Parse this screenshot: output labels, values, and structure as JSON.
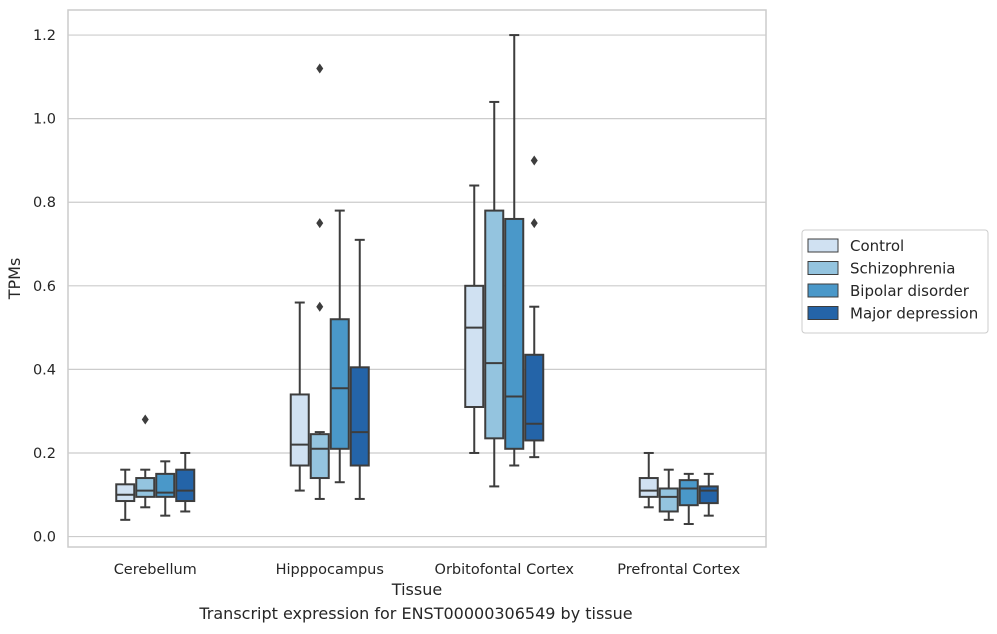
{
  "caption": "Transcript expression for ENST00000306549 by tissue",
  "chart_data": {
    "type": "boxplot",
    "xlabel": "Tissue",
    "ylabel": "TPMs",
    "ylim": [
      -0.025,
      1.26
    ],
    "yticks": [
      0.0,
      0.2,
      0.4,
      0.6,
      0.8,
      1.0,
      1.2
    ],
    "ytick_labels": [
      "0.0",
      "0.2",
      "0.4",
      "0.6",
      "0.8",
      "1.0",
      "1.2"
    ],
    "grid": "horizontal",
    "legend_position": "right",
    "categories": [
      "Cerebellum",
      "Hipppocampus",
      "Orbitofontal Cortex",
      "Prefrontal Cortex"
    ],
    "series": [
      {
        "name": "Control",
        "color": "#d0e1f2",
        "boxes": [
          {
            "whisker_low": 0.04,
            "q1": 0.085,
            "median": 0.1,
            "q3": 0.125,
            "whisker_high": 0.16,
            "outliers": []
          },
          {
            "whisker_low": 0.11,
            "q1": 0.17,
            "median": 0.22,
            "q3": 0.34,
            "whisker_high": 0.56,
            "outliers": []
          },
          {
            "whisker_low": 0.2,
            "q1": 0.31,
            "median": 0.5,
            "q3": 0.6,
            "whisker_high": 0.84,
            "outliers": []
          },
          {
            "whisker_low": 0.07,
            "q1": 0.095,
            "median": 0.11,
            "q3": 0.14,
            "whisker_high": 0.2,
            "outliers": []
          }
        ]
      },
      {
        "name": "Schizophrenia",
        "color": "#94c4df",
        "boxes": [
          {
            "whisker_low": 0.07,
            "q1": 0.095,
            "median": 0.11,
            "q3": 0.14,
            "whisker_high": 0.16,
            "outliers": [
              0.28
            ]
          },
          {
            "whisker_low": 0.09,
            "q1": 0.14,
            "median": 0.21,
            "q3": 0.245,
            "whisker_high": 0.25,
            "outliers": [
              0.55,
              0.75,
              1.12
            ]
          },
          {
            "whisker_low": 0.12,
            "q1": 0.235,
            "median": 0.415,
            "q3": 0.78,
            "whisker_high": 1.04,
            "outliers": []
          },
          {
            "whisker_low": 0.04,
            "q1": 0.06,
            "median": 0.095,
            "q3": 0.115,
            "whisker_high": 0.16,
            "outliers": []
          }
        ]
      },
      {
        "name": "Bipolar disorder",
        "color": "#4a98c9",
        "boxes": [
          {
            "whisker_low": 0.05,
            "q1": 0.095,
            "median": 0.105,
            "q3": 0.15,
            "whisker_high": 0.18,
            "outliers": []
          },
          {
            "whisker_low": 0.13,
            "q1": 0.21,
            "median": 0.355,
            "q3": 0.52,
            "whisker_high": 0.78,
            "outliers": []
          },
          {
            "whisker_low": 0.17,
            "q1": 0.21,
            "median": 0.335,
            "q3": 0.76,
            "whisker_high": 1.2,
            "outliers": []
          },
          {
            "whisker_low": 0.03,
            "q1": 0.075,
            "median": 0.115,
            "q3": 0.135,
            "whisker_high": 0.15,
            "outliers": []
          }
        ]
      },
      {
        "name": "Major depression",
        "color": "#2464a8",
        "boxes": [
          {
            "whisker_low": 0.06,
            "q1": 0.085,
            "median": 0.11,
            "q3": 0.16,
            "whisker_high": 0.2,
            "outliers": []
          },
          {
            "whisker_low": 0.09,
            "q1": 0.17,
            "median": 0.25,
            "q3": 0.405,
            "whisker_high": 0.71,
            "outliers": []
          },
          {
            "whisker_low": 0.19,
            "q1": 0.23,
            "median": 0.27,
            "q3": 0.435,
            "whisker_high": 0.55,
            "outliers": [
              0.75,
              0.9
            ]
          },
          {
            "whisker_low": 0.05,
            "q1": 0.08,
            "median": 0.11,
            "q3": 0.12,
            "whisker_high": 0.15,
            "outliers": []
          }
        ]
      }
    ]
  }
}
